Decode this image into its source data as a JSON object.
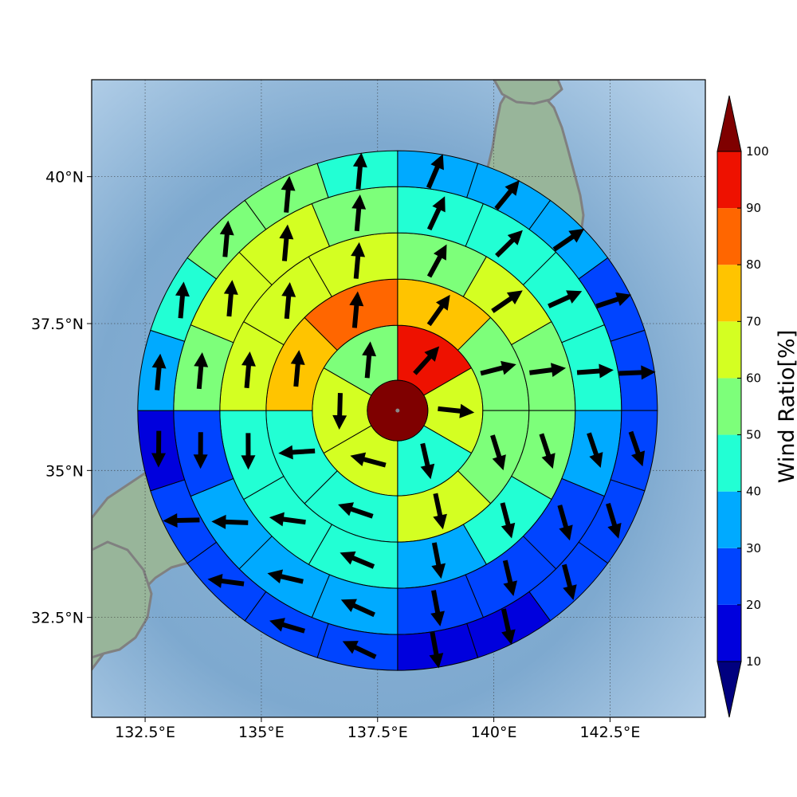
{
  "chart_data": {
    "type": "heatmap",
    "title": "",
    "subtitle": "",
    "xlabel": "",
    "ylabel": "",
    "plot_kind": "polar-sector wind ratio map with wind direction arrows",
    "xlim": [
      131.35,
      144.55
    ],
    "ylim": [
      30.8,
      41.65
    ],
    "x_ticks": [
      132.5,
      135,
      137.5,
      140,
      142.5
    ],
    "x_tick_labels": [
      "132.5°E",
      "135°E",
      "137.5°E",
      "140°E",
      "142.5°E"
    ],
    "y_ticks": [
      32.5,
      35,
      37.5,
      40
    ],
    "y_tick_labels": [
      "32.5°N",
      "35°N",
      "37.5°N",
      "40°N"
    ],
    "grid": true,
    "center": [
      137.93,
      36.02
    ],
    "rings": [
      {
        "inner": 0.0,
        "outer": 0.0,
        "values": []
      },
      {
        "sectors": 6,
        "values": [
          90,
          60,
          40,
          60,
          60,
          50
        ]
      },
      {
        "sectors": 8,
        "values": [
          70,
          50,
          50,
          60,
          40,
          40,
          70,
          80
        ]
      },
      {
        "sectors": 12,
        "values": [
          50,
          60,
          50,
          50,
          40,
          30,
          40,
          40,
          40,
          60,
          60,
          60
        ]
      },
      {
        "sectors": 16,
        "values": [
          40,
          40,
          40,
          40,
          30,
          20,
          20,
          20,
          30,
          30,
          30,
          20,
          50,
          60,
          60,
          50
        ]
      },
      {
        "sectors": 20,
        "values": [
          30,
          30,
          30,
          20,
          20,
          20,
          20,
          20,
          10,
          10,
          20,
          20,
          20,
          20,
          10,
          30,
          40,
          50,
          50,
          40
        ]
      }
    ],
    "center_value": 100,
    "colorbar": {
      "label": "Wind Ratio[%]",
      "ticks": [
        10,
        20,
        30,
        40,
        50,
        60,
        70,
        80,
        90,
        100
      ],
      "tick_labels": [
        "10",
        "20",
        "30",
        "40",
        "50",
        "60",
        "70",
        "80",
        "90",
        "100"
      ],
      "colors": [
        "#0000dd",
        "#0044ff",
        "#00aaff",
        "#22ffd4",
        "#7dff7a",
        "#d4ff22",
        "#ffc400",
        "#ff6600",
        "#ee1100"
      ],
      "under_color": "#00007f",
      "over_color": "#7f0000",
      "extend": "both"
    }
  }
}
